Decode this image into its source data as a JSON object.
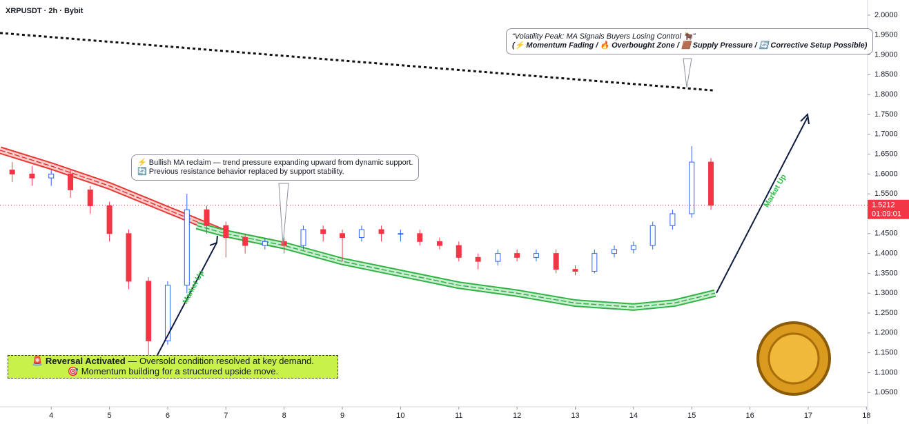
{
  "chart_data": {
    "type": "candlestick",
    "title": "XRPUSDT · 2h · Bybit",
    "x": [
      3.33,
      3.67,
      4,
      4.33,
      4.67,
      5,
      5.33,
      5.67,
      6,
      6.33,
      6.67,
      7,
      7.33,
      7.67,
      8,
      8.33,
      8.67,
      9,
      9.33,
      9.67,
      10,
      10.33,
      10.67,
      11,
      11.33,
      11.67,
      12,
      12.33,
      12.67,
      13,
      13.33,
      13.67,
      14,
      14.33,
      14.67,
      15,
      15.33
    ],
    "open": [
      1.61,
      1.6,
      1.59,
      1.6,
      1.56,
      1.52,
      1.45,
      1.33,
      1.18,
      1.32,
      1.51,
      1.47,
      1.44,
      1.42,
      1.43,
      1.42,
      1.46,
      1.45,
      1.44,
      1.46,
      1.45,
      1.45,
      1.43,
      1.42,
      1.39,
      1.38,
      1.4,
      1.39,
      1.4,
      1.36,
      1.355,
      1.4,
      1.41,
      1.42,
      1.47,
      1.5,
      1.63
    ],
    "high": [
      1.63,
      1.62,
      1.61,
      1.61,
      1.57,
      1.53,
      1.46,
      1.34,
      1.33,
      1.55,
      1.52,
      1.48,
      1.45,
      1.44,
      1.44,
      1.47,
      1.47,
      1.46,
      1.47,
      1.47,
      1.46,
      1.46,
      1.44,
      1.43,
      1.4,
      1.41,
      1.41,
      1.41,
      1.41,
      1.37,
      1.41,
      1.42,
      1.43,
      1.48,
      1.51,
      1.67,
      1.64
    ],
    "low": [
      1.58,
      1.57,
      1.57,
      1.54,
      1.5,
      1.43,
      1.31,
      1.14,
      1.17,
      1.3,
      1.45,
      1.39,
      1.4,
      1.41,
      1.4,
      1.41,
      1.43,
      1.38,
      1.43,
      1.43,
      1.43,
      1.42,
      1.41,
      1.38,
      1.36,
      1.37,
      1.38,
      1.38,
      1.35,
      1.345,
      1.35,
      1.39,
      1.4,
      1.41,
      1.46,
      1.49,
      1.51
    ],
    "close": [
      1.6,
      1.59,
      1.6,
      1.56,
      1.52,
      1.45,
      1.33,
      1.18,
      1.32,
      1.51,
      1.47,
      1.44,
      1.42,
      1.43,
      1.42,
      1.46,
      1.45,
      1.44,
      1.46,
      1.45,
      1.45,
      1.43,
      1.42,
      1.39,
      1.38,
      1.4,
      1.39,
      1.4,
      1.36,
      1.355,
      1.4,
      1.41,
      1.42,
      1.47,
      1.5,
      1.63,
      1.5212
    ],
    "up_color": "#2962ff",
    "down_color": "#f23645",
    "lines": [
      {
        "style": "band",
        "color": "#e53935",
        "x": [
          3.12,
          4,
          5,
          6,
          7,
          8
        ],
        "values": [
          1.66,
          1.62,
          1.57,
          1.51,
          1.45,
          1.42
        ]
      },
      {
        "style": "band",
        "color": "#2fb344",
        "x": [
          6.5,
          7,
          8,
          9,
          10,
          11,
          12,
          13,
          14,
          14.7,
          15.4
        ],
        "values": [
          1.47,
          1.45,
          1.42,
          1.38,
          1.35,
          1.32,
          1.3,
          1.275,
          1.265,
          1.275,
          1.3
        ]
      },
      {
        "style": "dotted",
        "color": "#111111",
        "x": [
          3.12,
          15.4
        ],
        "values": [
          1.955,
          1.81
        ]
      }
    ],
    "xlim": [
      3.12,
      18.02
    ],
    "ylim": [
      1.014,
      2.038
    ],
    "xticks": [
      4,
      5,
      6,
      7,
      8,
      9,
      10,
      11,
      12,
      13,
      14,
      15,
      16,
      17,
      18
    ],
    "yticks": [
      {
        "value": 1.05,
        "label": "1.0500"
      },
      {
        "value": 1.1,
        "label": "1.1000"
      },
      {
        "value": 1.15,
        "label": "1.1500"
      },
      {
        "value": 1.2,
        "label": "1.2000"
      },
      {
        "value": 1.25,
        "label": "1.2500"
      },
      {
        "value": 1.3,
        "label": "1.3000"
      },
      {
        "value": 1.35,
        "label": "1.3500"
      },
      {
        "value": 1.4,
        "label": "1.4000"
      },
      {
        "value": 1.45,
        "label": "1.4500"
      },
      {
        "value": 1.5,
        "label": "1.5000"
      },
      {
        "value": 1.55,
        "label": "1.5500"
      },
      {
        "value": 1.6,
        "label": "1.6000"
      },
      {
        "value": 1.65,
        "label": "1.6500"
      },
      {
        "value": 1.7,
        "label": "1.7000"
      },
      {
        "value": 1.75,
        "label": "1.7500"
      },
      {
        "value": 1.8,
        "label": "1.8000"
      },
      {
        "value": 1.85,
        "label": "1.8500"
      },
      {
        "value": 1.9,
        "label": "1.9000"
      },
      {
        "value": 1.95,
        "label": "1.9500"
      },
      {
        "value": 2.0,
        "label": "2.0000"
      }
    ],
    "countdown": "01:09:01",
    "annotations": {
      "peak": [
        "“Volatility Peak: MA Signals Buyers Losing Control 🐂”",
        "(⚡ Momentum Fading / 🔥 Overbought Zone / 🟫 Supply Pressure / 🔄 Corrective Setup Possible)"
      ],
      "reclaim": [
        "⚡ Bullish MA reclaim — trend pressure expanding upward from dynamic support.",
        "🔄 Previous resistance behavior replaced by support stability."
      ],
      "reversal_icon": "🚨",
      "reversal_bold": "Reversal Activated",
      "reversal_rest": "— Oversold condition resolved at key demand.",
      "reversal_line2": "🎯 Momentum building for a structured upside move.",
      "market_up_1": "Market Up",
      "market_up_2": "Market Up"
    }
  }
}
